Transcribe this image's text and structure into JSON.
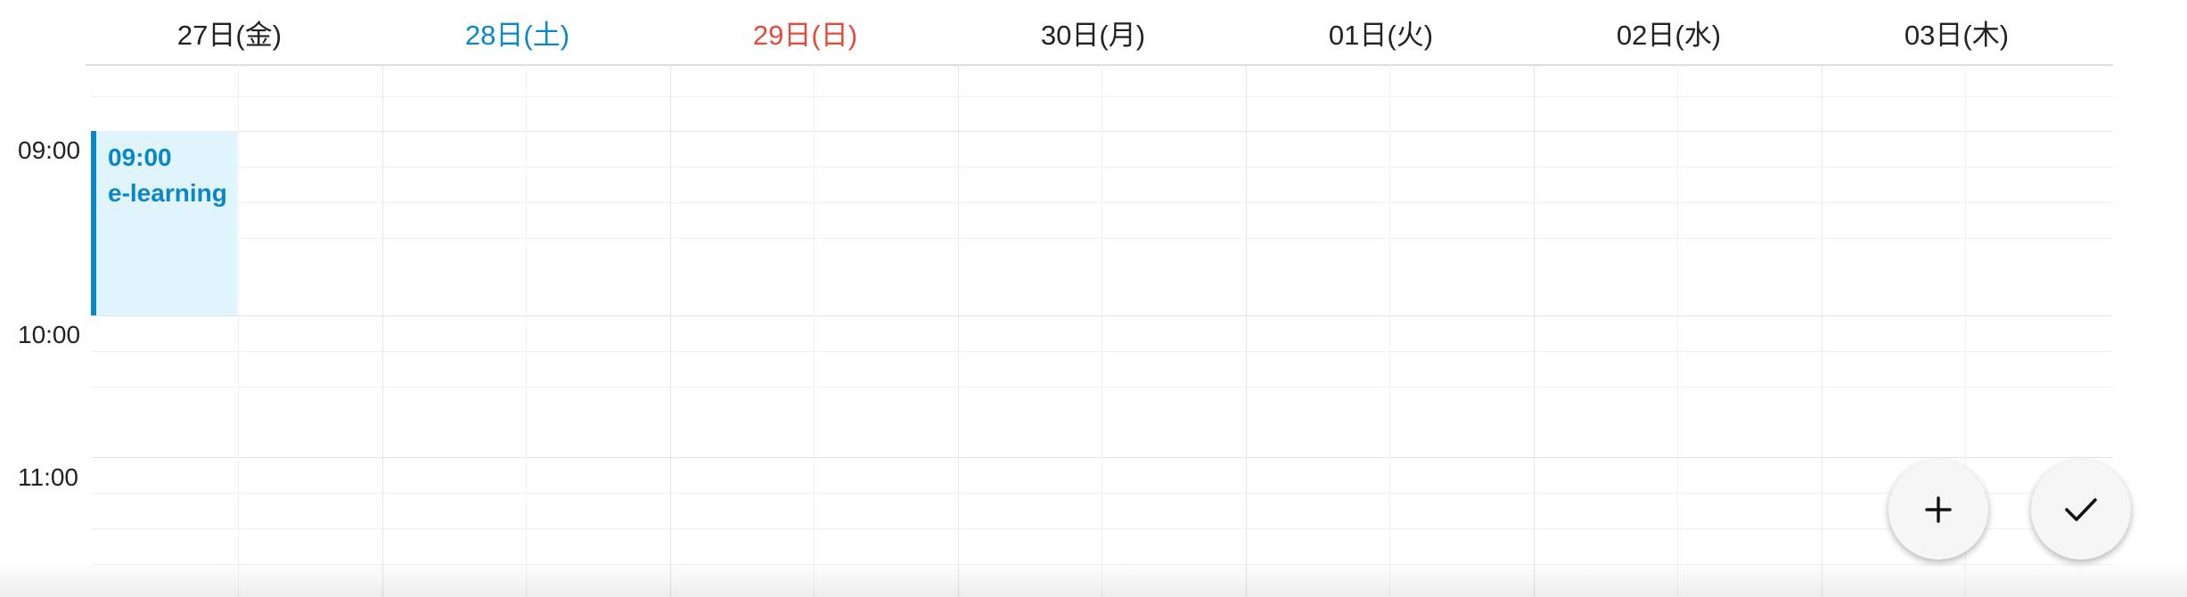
{
  "days": [
    {
      "label": "27日(金)",
      "color": "#222222"
    },
    {
      "label": "28日(土)",
      "color": "#0a87c7"
    },
    {
      "label": "29日(日)",
      "color": "#e5493a"
    },
    {
      "label": "30日(月)",
      "color": "#222222"
    },
    {
      "label": "01日(火)",
      "color": "#222222"
    },
    {
      "label": "02日(水)",
      "color": "#222222"
    },
    {
      "label": "03日(木)",
      "color": "#222222"
    }
  ],
  "times": [
    "09:00",
    "10:00",
    "11:00"
  ],
  "event": {
    "time": "09:00",
    "title": "e-learning",
    "color": "#0a87c7",
    "bg": "#e0f4fc"
  },
  "fabs": {
    "add_icon": "plus-icon",
    "confirm_icon": "check-icon"
  }
}
